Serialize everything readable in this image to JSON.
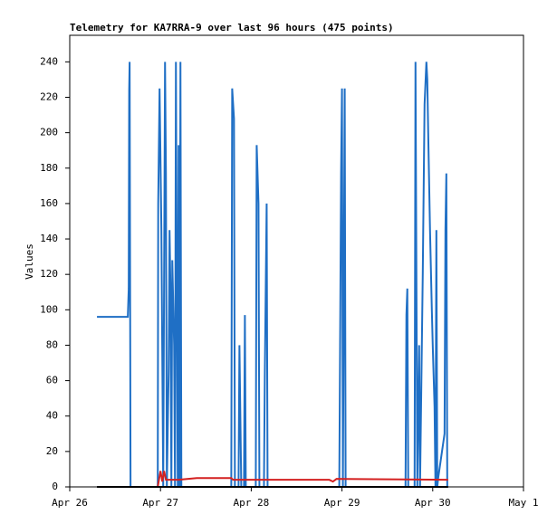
{
  "chart_data": {
    "type": "line",
    "title": "Telemetry for KA7RRA-9 over last 96 hours (475 points)",
    "ylabel": "Values",
    "xlim": [
      0,
      5
    ],
    "xticks": [
      {
        "value": 0,
        "label": "Apr 26"
      },
      {
        "value": 1,
        "label": "Apr 27"
      },
      {
        "value": 2,
        "label": "Apr 28"
      },
      {
        "value": 3,
        "label": "Apr 29"
      },
      {
        "value": 4,
        "label": "Apr 30"
      },
      {
        "value": 5,
        "label": "May 1"
      }
    ],
    "ylim": [
      0,
      255
    ],
    "yticks": [
      0,
      20,
      40,
      60,
      80,
      100,
      120,
      140,
      160,
      180,
      200,
      220,
      240
    ],
    "series": [
      {
        "color": "#1f6fc5",
        "x": [
          0.3,
          0.64,
          0.65,
          0.655,
          0.66,
          0.67,
          0.97,
          0.975,
          0.99,
          1.01,
          1.03,
          1.05,
          1.06,
          1.07,
          1.09,
          1.1,
          1.11,
          1.12,
          1.13,
          1.15,
          1.16,
          1.17,
          1.18,
          1.19,
          1.2,
          1.21,
          1.22,
          1.23,
          1.78,
          1.79,
          1.81,
          1.82,
          1.86,
          1.87,
          1.88,
          1.89,
          1.92,
          1.93,
          1.94,
          2.05,
          2.06,
          2.08,
          2.09,
          2.14,
          2.15,
          2.17,
          2.18,
          2.97,
          2.98,
          2.99,
          3.0,
          3.01,
          3.03,
          3.04,
          3.7,
          3.71,
          3.72,
          3.73,
          3.8,
          3.81,
          3.82,
          3.83,
          3.85,
          3.86,
          3.89,
          3.9,
          3.91,
          3.93,
          3.94,
          3.95,
          3.97,
          3.99,
          4.0,
          4.02,
          4.03,
          4.04,
          4.05,
          4.06,
          4.13,
          4.14,
          4.15,
          4.16
        ],
        "values": [
          96,
          96,
          112,
          224,
          240,
          0,
          0,
          160,
          225,
          145,
          0,
          240,
          177,
          0,
          65,
          145,
          112,
          0,
          128,
          80,
          0,
          240,
          112,
          0,
          193,
          0,
          240,
          0,
          0,
          225,
          208,
          0,
          0,
          80,
          40,
          0,
          0,
          97,
          0,
          0,
          193,
          160,
          0,
          0,
          65,
          160,
          0,
          0,
          88,
          177,
          225,
          0,
          225,
          0,
          0,
          97,
          112,
          0,
          0,
          240,
          120,
          0,
          80,
          0,
          120,
          168,
          216,
          240,
          230,
          200,
          145,
          100,
          80,
          45,
          0,
          145,
          0,
          5,
          30,
          145,
          177,
          0
        ]
      },
      {
        "color": "#d42020",
        "x": [
          0.97,
          1.0,
          1.02,
          1.04,
          1.06,
          1.2,
          1.4,
          1.78,
          1.8,
          2.86,
          2.9,
          2.94,
          4.17
        ],
        "values": [
          0,
          9,
          3,
          9,
          4,
          4,
          5,
          5,
          4,
          4,
          3,
          4.5,
          4
        ]
      },
      {
        "color": "#000000",
        "x": [
          0.3,
          4.17
        ],
        "values": [
          0,
          0
        ]
      }
    ]
  }
}
